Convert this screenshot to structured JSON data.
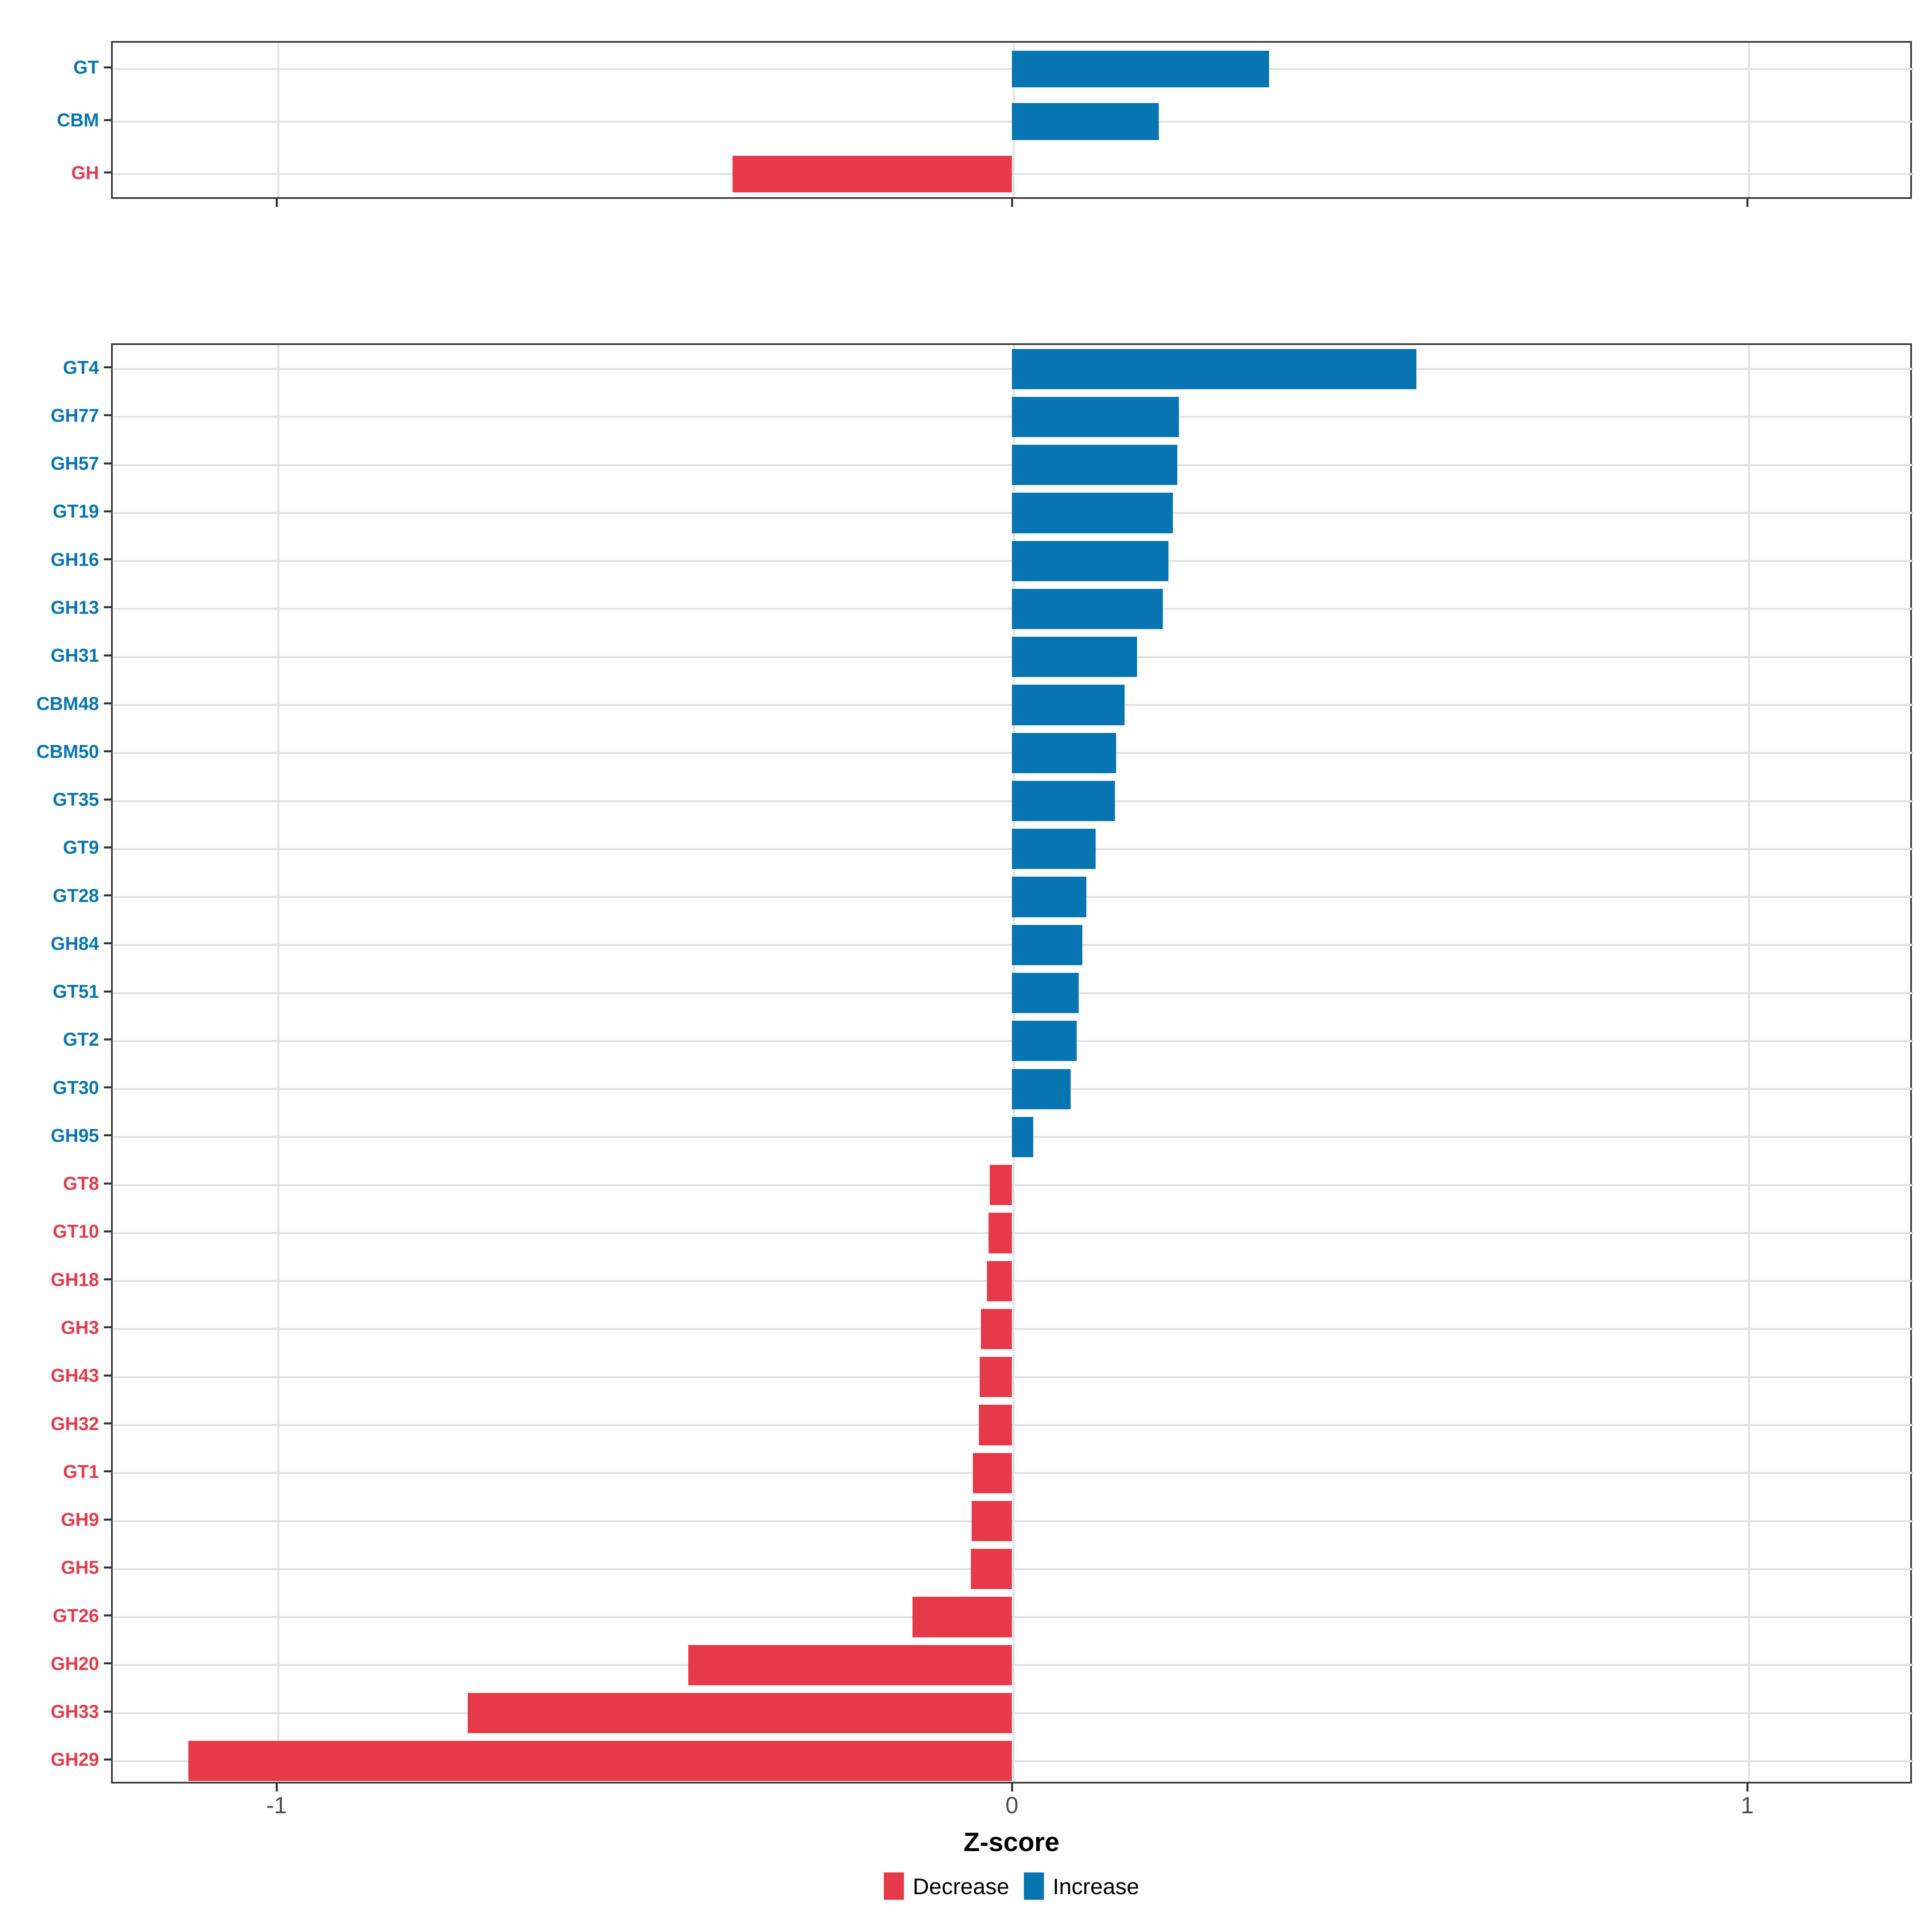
{
  "chart_data": {
    "type": "bar",
    "orientation": "horizontal",
    "xlabel": "Z-score",
    "x_ticks": [
      "-1",
      "0",
      "1"
    ],
    "x_tick_values": [
      -1,
      0,
      1
    ],
    "x_range": [
      -1.22,
      1.22
    ],
    "grid": true,
    "legend_position": "bottom",
    "panels": [
      {
        "name": "family-summary",
        "categories": [
          "GT",
          "CBM",
          "GH"
        ],
        "values": [
          0.35,
          0.2,
          -0.38
        ]
      },
      {
        "name": "family-detail",
        "categories": [
          "GT4",
          "GH77",
          "GH57",
          "GT19",
          "GH16",
          "GH13",
          "GH31",
          "CBM48",
          "CBM50",
          "GT35",
          "GT9",
          "GT28",
          "GH84",
          "GT51",
          "GT2",
          "GT30",
          "GH95",
          "GT8",
          "GT10",
          "GH18",
          "GH3",
          "GH43",
          "GH32",
          "GT1",
          "GH9",
          "GH5",
          "GT26",
          "GH20",
          "GH33",
          "GH29"
        ],
        "values": [
          0.55,
          0.227,
          0.225,
          0.219,
          0.213,
          0.205,
          0.17,
          0.153,
          0.142,
          0.14,
          0.114,
          0.101,
          0.096,
          0.091,
          0.088,
          0.08,
          0.029,
          -0.03,
          -0.032,
          -0.034,
          -0.042,
          -0.044,
          -0.045,
          -0.053,
          -0.055,
          -0.056,
          -0.135,
          -0.44,
          -0.74,
          -1.12
        ]
      }
    ]
  },
  "axis": {
    "title": "Z-score",
    "tick_labels": [
      "-1",
      "0",
      "1"
    ]
  },
  "legend": {
    "decrease_label": "Decrease",
    "increase_label": "Increase"
  },
  "colors": {
    "increase": "#0675B2",
    "decrease": "#E6394A",
    "grid": "#E2E2E2",
    "axis_text": "#4D4D4D",
    "panel_border": "#333333",
    "background": "#FFFFFF"
  }
}
